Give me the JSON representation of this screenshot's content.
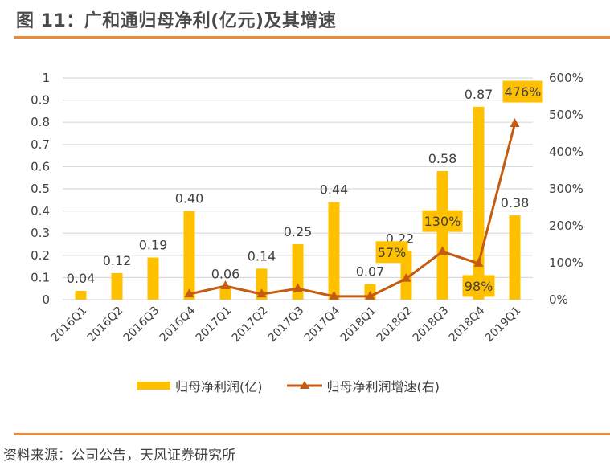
{
  "header": {
    "title": "图 11：广和通归母净利(亿元)及其增速"
  },
  "footer": {
    "source": "资料来源：公司公告，天风证券研究所"
  },
  "colors": {
    "bar": "#ffc000",
    "line": "#c55a11",
    "rule": "#ed8b34",
    "grid": "#d9d9d9"
  },
  "chart_data": {
    "type": "bar+line",
    "title": "广和通归母净利(亿元)及其增速",
    "categories": [
      "2016Q1",
      "2016Q2",
      "2016Q3",
      "2016Q4",
      "2017Q1",
      "2017Q2",
      "2017Q3",
      "2017Q4",
      "2018Q1",
      "2018Q2",
      "2018Q3",
      "2018Q4",
      "2019Q1"
    ],
    "series": [
      {
        "name": "归母净利润(亿)",
        "type": "bar",
        "axis": "left",
        "values": [
          0.04,
          0.12,
          0.19,
          0.4,
          0.06,
          0.14,
          0.25,
          0.44,
          0.07,
          0.22,
          0.58,
          0.87,
          0.38
        ],
        "labels": [
          "0.04",
          "0.12",
          "0.19",
          "0.40",
          "0.06",
          "0.14",
          "0.25",
          "0.44",
          "0.07",
          "0.22",
          "0.58",
          "0.87",
          "0.38"
        ]
      },
      {
        "name": "归母净利润增速(右)",
        "type": "line",
        "axis": "right",
        "values": [
          null,
          null,
          null,
          15,
          37,
          15,
          30,
          9,
          9,
          57,
          130,
          98,
          476
        ],
        "labels": [
          null,
          null,
          null,
          null,
          null,
          null,
          null,
          null,
          null,
          "57%",
          "130%",
          "98%",
          "476%"
        ]
      }
    ],
    "y_left": {
      "ylim": [
        0,
        1
      ],
      "ticks": [
        "0",
        "0.1",
        "0.2",
        "0.3",
        "0.4",
        "0.5",
        "0.6",
        "0.7",
        "0.8",
        "0.9",
        "1"
      ]
    },
    "y_right": {
      "ylim": [
        0,
        600
      ],
      "ticks": [
        "0%",
        "100%",
        "200%",
        "300%",
        "400%",
        "500%",
        "600%"
      ]
    },
    "grid": true,
    "legend": {
      "placement": "bottom",
      "entries": [
        "归母净利润(亿)",
        "归母净利润增速(右)"
      ]
    }
  }
}
